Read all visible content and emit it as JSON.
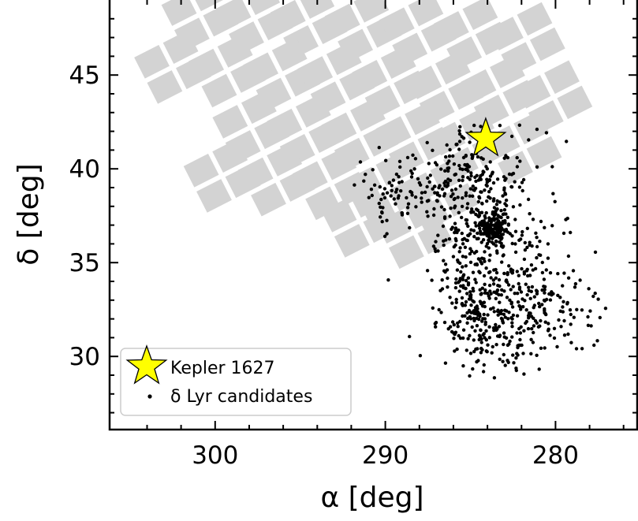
{
  "chart_data": {
    "type": "scatter",
    "xlabel": "α [deg]",
    "ylabel": "δ [deg]",
    "xlim": [
      306.2,
      275.2
    ],
    "ylim": [
      26.1,
      49.0
    ],
    "x_ticks": [
      300,
      290,
      280
    ],
    "y_ticks": [
      30,
      35,
      40,
      45
    ],
    "x_minor_step": 2,
    "y_minor_step": 1,
    "grid": false,
    "legend": {
      "location": "lower-left",
      "entries": [
        {
          "label": "Kepler 1627",
          "marker": "star",
          "color": "#ffff00"
        },
        {
          "label": "δ Lyr candidates",
          "marker": "dot",
          "color": "#000000"
        }
      ]
    },
    "kepler_1627": {
      "ra": 284.1,
      "dec": 41.6,
      "color": "#ffff00"
    },
    "footprint": {
      "description": "Kepler field CCD module footprint",
      "color": "#d3d3d3",
      "modules": [
        {
          "ra": 300.8,
          "dec": 48.2
        },
        {
          "ra": 297.6,
          "dec": 48.0
        },
        {
          "ra": 294.4,
          "dec": 47.8
        },
        {
          "ra": 291.2,
          "dec": 47.6
        },
        {
          "ra": 288.0,
          "dec": 47.4
        },
        {
          "ra": 284.8,
          "dec": 47.2
        },
        {
          "ra": 281.6,
          "dec": 46.9
        },
        {
          "ra": 302.4,
          "dec": 45.4
        },
        {
          "ra": 299.2,
          "dec": 45.2
        },
        {
          "ra": 296.0,
          "dec": 45.0
        },
        {
          "ra": 292.8,
          "dec": 44.8
        },
        {
          "ra": 289.6,
          "dec": 44.6
        },
        {
          "ra": 286.4,
          "dec": 44.3
        },
        {
          "ra": 283.2,
          "dec": 44.1
        },
        {
          "ra": 280.0,
          "dec": 43.8
        },
        {
          "ra": 297.8,
          "dec": 42.2
        },
        {
          "ra": 294.6,
          "dec": 42.0
        },
        {
          "ra": 291.4,
          "dec": 41.8
        },
        {
          "ra": 288.2,
          "dec": 41.6
        },
        {
          "ra": 285.0,
          "dec": 41.3
        },
        {
          "ra": 281.8,
          "dec": 41.1
        },
        {
          "ra": 299.5,
          "dec": 39.6
        },
        {
          "ra": 296.3,
          "dec": 39.4
        },
        {
          "ra": 293.1,
          "dec": 39.2
        },
        {
          "ra": 289.9,
          "dec": 38.9
        },
        {
          "ra": 286.7,
          "dec": 38.6
        },
        {
          "ra": 291.4,
          "dec": 37.2
        },
        {
          "ra": 288.2,
          "dec": 36.6
        }
      ]
    },
    "candidates": {
      "label": "δ Lyr candidates",
      "color": "#000000",
      "count": 1050,
      "clusters": [
        {
          "ra": 283.6,
          "dec": 36.8,
          "sd_ra": 0.5,
          "sd_dec": 0.4,
          "n": 150
        },
        {
          "ra": 283.2,
          "dec": 35.2,
          "sd_ra": 1.8,
          "sd_dec": 2.8,
          "n": 330
        },
        {
          "ra": 284.3,
          "dec": 31.8,
          "sd_ra": 1.3,
          "sd_dec": 1.3,
          "n": 150
        },
        {
          "ra": 285.0,
          "dec": 39.3,
          "sd_ra": 1.2,
          "sd_dec": 1.6,
          "n": 160
        },
        {
          "ra": 288.5,
          "dec": 38.8,
          "sd_ra": 1.7,
          "sd_dec": 1.0,
          "n": 110
        },
        {
          "ra": 280.0,
          "dec": 32.5,
          "sd_ra": 1.5,
          "sd_dec": 1.2,
          "n": 90
        },
        {
          "ra": 285.3,
          "dec": 33.8,
          "sd_ra": 0.7,
          "sd_dec": 2.0,
          "n": 60
        }
      ],
      "bounds": {
        "ra_min": 277.0,
        "ra_max": 291.9,
        "dec_min": 28.6,
        "dec_max": 42.6
      }
    }
  }
}
